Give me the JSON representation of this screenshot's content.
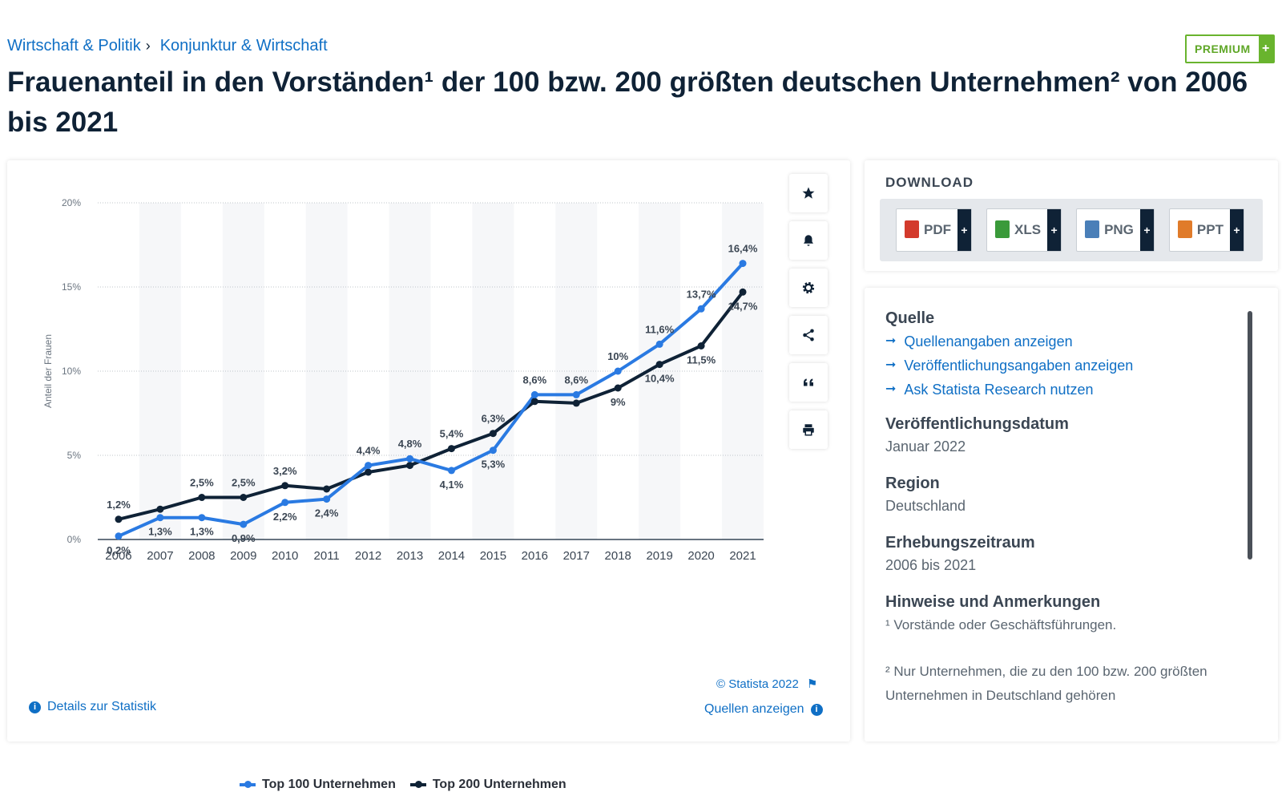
{
  "breadcrumb": {
    "item1": "Wirtschaft & Politik",
    "separator": "›",
    "item2": "Konjunktur & Wirtschaft"
  },
  "premium": {
    "label": "PREMIUM",
    "plus": "+"
  },
  "page_title": "Frauenanteil in den Vorständen¹ der 100 bzw. 200 größten deutschen Unternehmen² von 2006 bis 2021",
  "chart_data": {
    "type": "line",
    "ylabel": "Anteil der Frauen",
    "xlabel": "",
    "ylim": [
      0,
      20
    ],
    "y_ticks": [
      "0%",
      "5%",
      "10%",
      "15%",
      "20%"
    ],
    "categories": [
      "2006",
      "2007",
      "2008",
      "2009",
      "2010",
      "2011",
      "2012",
      "2013",
      "2014",
      "2015",
      "2016",
      "2017",
      "2018",
      "2019",
      "2020",
      "2021"
    ],
    "series": [
      {
        "name": "Top 100 Unternehmen",
        "color": "#2a7ae2",
        "values": [
          0.2,
          1.3,
          1.3,
          0.9,
          2.2,
          2.4,
          4.4,
          4.8,
          4.1,
          5.3,
          8.6,
          8.6,
          10,
          11.6,
          13.7,
          16.4
        ],
        "labels": [
          "0,2%",
          "1,3%",
          "1,3%",
          "0,9%",
          "2,2%",
          "2,4%",
          "4,4%",
          "4,8%",
          "4,1%",
          "5,3%",
          "8,6%",
          "8,6%",
          "10%",
          "11,6%",
          "13,7%",
          "16,4%"
        ]
      },
      {
        "name": "Top 200 Unternehmen",
        "color": "#0f2236",
        "values": [
          1.2,
          1.8,
          2.5,
          2.5,
          3.2,
          3.0,
          4.0,
          4.4,
          5.4,
          6.3,
          8.2,
          8.1,
          9.0,
          10.4,
          11.5,
          14.7
        ],
        "labels": [
          "1,2%",
          "",
          "2,5%",
          "2,5%",
          "3,2%",
          "",
          "",
          "",
          "5,4%",
          "6,3%",
          "",
          "",
          "9%",
          "10,4%",
          "11,5%",
          "14,7%"
        ]
      }
    ],
    "grid": true,
    "legend_position": "bottom"
  },
  "tools": [
    "star-icon",
    "bell-icon",
    "gear-icon",
    "share-icon",
    "quote-icon",
    "print-icon"
  ],
  "credit": "© Statista 2022",
  "details_link": "Details zur Statistik",
  "sources_link": "Quellen anzeigen",
  "download": {
    "title": "DOWNLOAD",
    "buttons": [
      {
        "label": "PDF",
        "color": "#d33a2c"
      },
      {
        "label": "XLS",
        "color": "#3a9a3a"
      },
      {
        "label": "PNG",
        "color": "#4a7fb8"
      },
      {
        "label": "PPT",
        "color": "#e07b2a"
      }
    ],
    "plus": "+"
  },
  "info": {
    "source_title": "Quelle",
    "source_links": [
      "Quellenangaben anzeigen",
      "Veröffentlichungsangaben anzeigen",
      "Ask Statista Research nutzen"
    ],
    "arrow": "➞",
    "pub_date_title": "Veröffentlichungsdatum",
    "pub_date": "Januar 2022",
    "region_title": "Region",
    "region": "Deutschland",
    "period_title": "Erhebungszeitraum",
    "period": "2006 bis 2021",
    "notes_title": "Hinweise und Anmerkungen",
    "note1": "¹ Vorstände oder Geschäftsführungen.",
    "note2": "² Nur Unternehmen, die zu den 100 bzw. 200 größten Unternehmen in Deutschland gehören"
  }
}
